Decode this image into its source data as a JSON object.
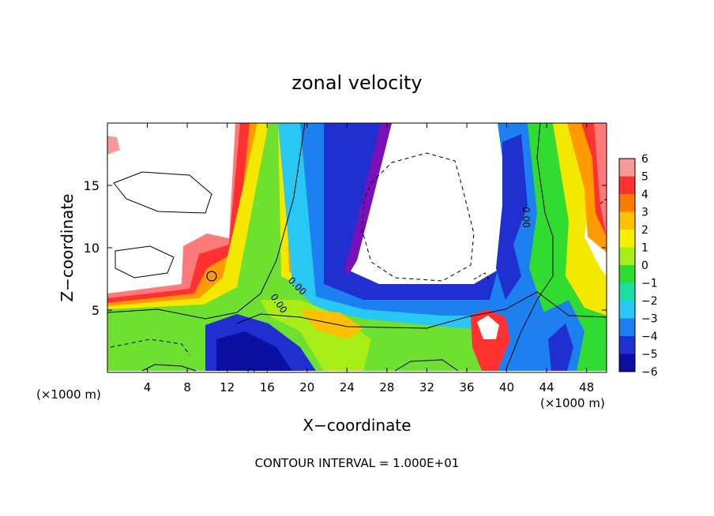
{
  "chart_data": {
    "type": "heatmap",
    "title": "zonal velocity",
    "xlabel": "X−coordinate",
    "ylabel": "Z−coordinate",
    "x_unit_left": "(×1000 m)",
    "x_unit_right": "(×1000 m)",
    "xlim": [
      0,
      50
    ],
    "ylim": [
      0,
      20
    ],
    "x_ticks": [
      4,
      8,
      12,
      16,
      20,
      24,
      28,
      32,
      36,
      40,
      44,
      48
    ],
    "x_tick_labels": [
      "4",
      "8",
      "12",
      "16",
      "20",
      "24",
      "28",
      "32",
      "36",
      "40",
      "44",
      "48"
    ],
    "y_ticks": [
      5,
      10,
      15
    ],
    "y_tick_labels": [
      "5",
      "10",
      "15"
    ],
    "colorbar": {
      "min": -6,
      "max": 6,
      "tick_labels": [
        "6",
        "5",
        "4",
        "3",
        "2",
        "1",
        "0",
        "−1",
        "−2",
        "−3",
        "−4",
        "−5",
        "−6"
      ],
      "colors": [
        "#f79999",
        "#ff3030",
        "#ff7a00",
        "#ffc000",
        "#f5f000",
        "#a8ec18",
        "#30dc30",
        "#18e0a0",
        "#28c8f4",
        "#1c80f0",
        "#2030d0",
        "#0c10a0",
        "#7a10b8"
      ]
    },
    "contour_labels": [
      "0.00",
      "0.00",
      "0.00"
    ],
    "contour_interval_text": "CONTOUR INTERVAL = 1.000E+01"
  }
}
